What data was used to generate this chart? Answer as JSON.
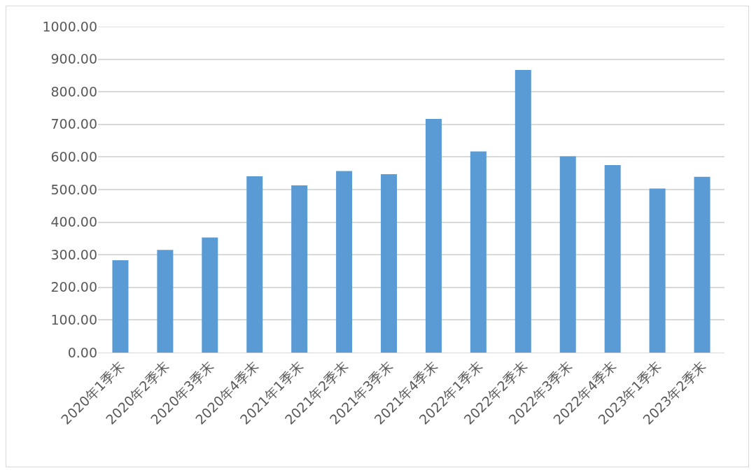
{
  "chart_data": {
    "type": "bar",
    "categories": [
      "2020年1季末",
      "2020年2季末",
      "2020年3季末",
      "2020年4季末",
      "2021年1季末",
      "2021年2季末",
      "2021年3季末",
      "2021年4季末",
      "2022年1季末",
      "2022年2季末",
      "2022年3季末",
      "2022年4季末",
      "2023年1季末",
      "2023年2季末"
    ],
    "values": [
      283,
      315,
      353,
      541,
      513,
      557,
      547,
      717,
      617,
      867,
      602,
      575,
      503,
      539
    ],
    "color": "#5b9bd5",
    "ylim": [
      0,
      1000
    ],
    "yticks": [
      {
        "value": 0,
        "label": "0.00"
      },
      {
        "value": 100,
        "label": "100.00"
      },
      {
        "value": 200,
        "label": "200.00"
      },
      {
        "value": 300,
        "label": "300.00"
      },
      {
        "value": 400,
        "label": "400.00"
      },
      {
        "value": 500,
        "label": "500.00"
      },
      {
        "value": 600,
        "label": "600.00"
      },
      {
        "value": 700,
        "label": "700.00"
      },
      {
        "value": 800,
        "label": "800.00"
      },
      {
        "value": 900,
        "label": "900.00"
      },
      {
        "value": 1000,
        "label": "1000.00"
      }
    ],
    "grid": "y"
  }
}
